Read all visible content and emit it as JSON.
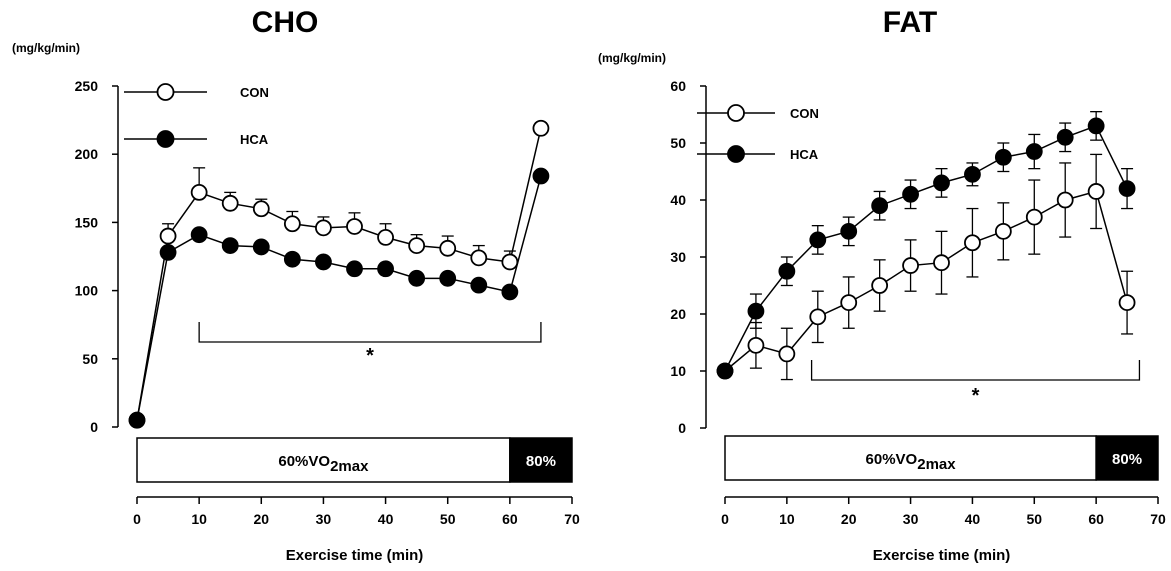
{
  "chart_data": [
    {
      "type": "line",
      "title": "CHO",
      "unit_label": "(mg/kg/min)",
      "xlabel": "Exercise time (min)",
      "ylabel": "",
      "xlim": [
        0,
        70
      ],
      "ylim": [
        0,
        250
      ],
      "xticks": [
        0,
        10,
        20,
        30,
        40,
        50,
        60,
        70
      ],
      "yticks": [
        0,
        50,
        100,
        150,
        200,
        250
      ],
      "x": [
        0,
        5,
        10,
        15,
        20,
        25,
        30,
        35,
        40,
        45,
        50,
        55,
        60,
        65
      ],
      "series": [
        {
          "name": "CON",
          "marker": "open-circle",
          "values": [
            5,
            140,
            172,
            164,
            160,
            149,
            146,
            147,
            139,
            133,
            131,
            124,
            121,
            219
          ],
          "errors": [
            0,
            9,
            18,
            8,
            7,
            9,
            8,
            10,
            10,
            8,
            9,
            9,
            8,
            4
          ]
        },
        {
          "name": "HCA",
          "marker": "filled-circle",
          "values": [
            5,
            128,
            141,
            133,
            132,
            123,
            121,
            116,
            116,
            109,
            109,
            104,
            99,
            184
          ],
          "errors": [
            0,
            0,
            0,
            0,
            0,
            0,
            0,
            0,
            0,
            0,
            0,
            0,
            0,
            0
          ]
        }
      ],
      "significance": {
        "from": 10,
        "to": 65,
        "label": "*"
      },
      "phases": [
        {
          "label_main": "60%VO",
          "label_sub": "2max",
          "from": 0,
          "to": 60,
          "fill": "#ffffff"
        },
        {
          "label_main": "80%",
          "label_sub": "",
          "from": 60,
          "to": 70,
          "fill": "#000000"
        }
      ]
    },
    {
      "type": "line",
      "title": "FAT",
      "unit_label": "(mg/kg/min)",
      "xlabel": "Exercise time (min)",
      "ylabel": "",
      "xlim": [
        0,
        70
      ],
      "ylim": [
        0,
        60
      ],
      "xticks": [
        0,
        10,
        20,
        30,
        40,
        50,
        60,
        70
      ],
      "yticks": [
        0,
        10,
        20,
        30,
        40,
        50,
        60
      ],
      "x": [
        0,
        5,
        10,
        15,
        20,
        25,
        30,
        35,
        40,
        45,
        50,
        55,
        60,
        65
      ],
      "series": [
        {
          "name": "CON",
          "marker": "open-circle",
          "values": [
            10,
            14.5,
            13,
            19.5,
            22,
            25,
            28.5,
            29,
            32.5,
            34.5,
            37,
            40,
            41.5,
            22
          ],
          "errors": [
            0,
            4,
            4.5,
            4.5,
            4.5,
            4.5,
            4.5,
            5.5,
            6,
            5,
            6.5,
            6.5,
            6.5,
            5.5
          ]
        },
        {
          "name": "HCA",
          "marker": "filled-circle",
          "values": [
            10,
            20.5,
            27.5,
            33,
            34.5,
            39,
            41,
            43,
            44.5,
            47.5,
            48.5,
            51,
            53,
            42
          ],
          "errors": [
            0,
            3,
            2.5,
            2.5,
            2.5,
            2.5,
            2.5,
            2.5,
            2,
            2.5,
            3,
            2.5,
            2.5,
            3.5
          ]
        }
      ],
      "significance": {
        "from": 14,
        "to": 67,
        "label": "*"
      },
      "phases": [
        {
          "label_main": "60%VO",
          "label_sub": "2max",
          "from": 0,
          "to": 60,
          "fill": "#ffffff"
        },
        {
          "label_main": "80%",
          "label_sub": "",
          "from": 60,
          "to": 70,
          "fill": "#000000"
        }
      ]
    }
  ]
}
